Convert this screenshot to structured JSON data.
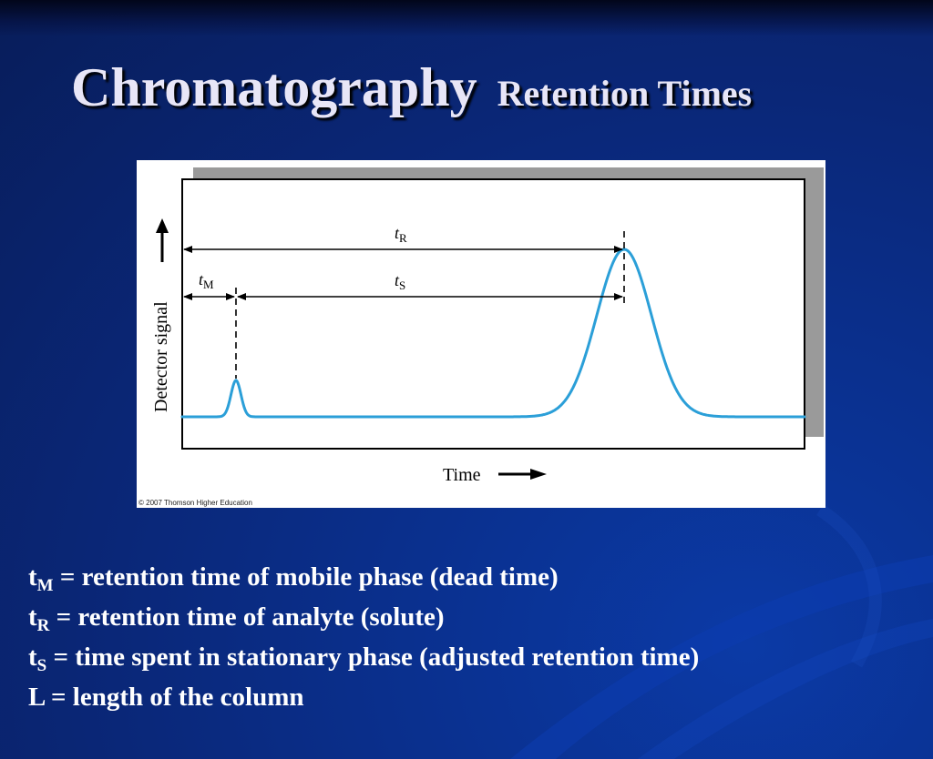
{
  "slide": {
    "title": "Chromatography",
    "subtitle": "Retention Times"
  },
  "figure": {
    "y_axis_label": "Detector signal",
    "x_axis_label": "Time",
    "label_tR_main": "t",
    "label_tR_sub": "R",
    "label_tS_main": "t",
    "label_tS_sub": "S",
    "label_tM_main": "t",
    "label_tM_sub": "M",
    "credit": "© 2007 Thomson Higher Education",
    "curve_color": "#2b9fd8"
  },
  "definitions": [
    {
      "symbol": "t",
      "sub": "M",
      "text": " = retention time of mobile phase (dead time)"
    },
    {
      "symbol": "t",
      "sub": "R",
      "text": " = retention time of analyte (solute)"
    },
    {
      "symbol": "t",
      "sub": "S",
      "text": " = time spent in stationary phase (adjusted retention time)"
    },
    {
      "symbol": "L",
      "sub": "",
      "text": " = length of the column"
    }
  ]
}
